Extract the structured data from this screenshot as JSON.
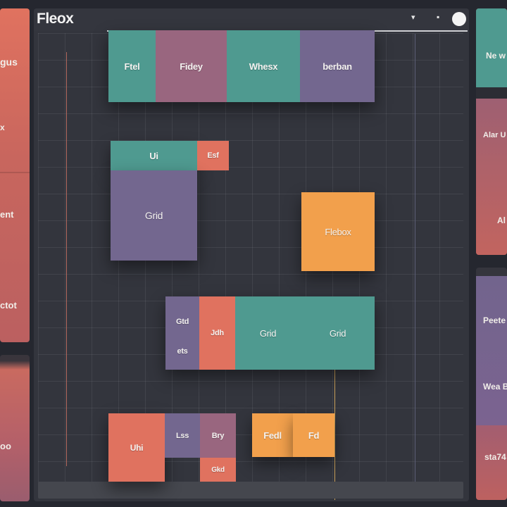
{
  "window": {
    "title": "Fleox",
    "controls": {
      "minimize": "▾",
      "maximize": "▪",
      "close": "●"
    }
  },
  "left_panel": {
    "labels": [
      "gus",
      "x",
      "ent",
      "ctot"
    ]
  },
  "left_panel_lower": {
    "label": "oo"
  },
  "right_panel_top": {
    "labels": [
      "Ne w",
      "Alar U",
      "Al"
    ]
  },
  "right_panel_bottom": {
    "labels": [
      "Peete",
      "Wea Ba",
      "sta74"
    ]
  },
  "canvas": {
    "row1": [
      "Ftel",
      "Fidey",
      "Whesx",
      "berban"
    ],
    "ui": "Ui",
    "esf": "Esf",
    "grid1": "Grid",
    "flexbox": "Flebox",
    "row3": {
      "stack_top": "Gtd",
      "stack_bottom": "ets",
      "coral": "Jdh",
      "grid_a": "Grid",
      "grid_b": "Grid"
    },
    "row4": {
      "uhi": "Uhi",
      "lss": "Lss",
      "bry": "Bry",
      "gkd": "Gkd",
      "fed": "Fedl",
      "fd": "Fd"
    }
  },
  "colors": {
    "teal": "#4f9a90",
    "mauve": "#99667f",
    "purple": "#73678f",
    "coral": "#e0725f",
    "orange": "#f2a04c",
    "background": "#25272f"
  }
}
